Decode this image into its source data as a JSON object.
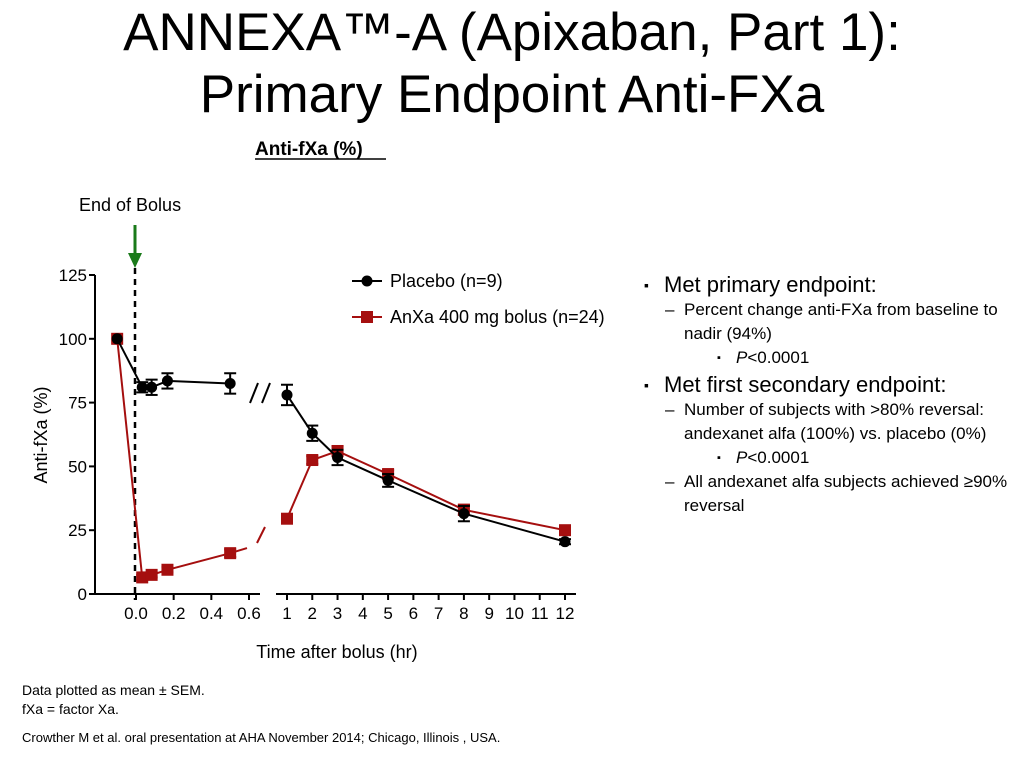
{
  "slide": {
    "title_line1": "ANNEXA™-A (Apixaban, Part 1):",
    "title_line2": "Primary Endpoint Anti-FXa"
  },
  "chart_data": {
    "type": "line",
    "title": "Anti-fXa (%)",
    "annotation": "End of Bolus",
    "xlabel": "Time after bolus (hr)",
    "ylabel": "Anti-fXa (%)",
    "ylim": [
      0,
      125
    ],
    "yticks": [
      0,
      25,
      50,
      75,
      100,
      125
    ],
    "ytick_labels": [
      "0",
      "25",
      "50",
      "75",
      "100",
      "125"
    ],
    "x_segment1": {
      "range": [
        -0.1,
        0.65
      ],
      "ticks": [
        0.0,
        0.2,
        0.4,
        0.6
      ],
      "tick_labels": [
        "0.0",
        "0.2",
        "0.4",
        "0.6"
      ]
    },
    "x_segment2": {
      "range": [
        0.75,
        12.3
      ],
      "ticks": [
        1,
        2,
        3,
        4,
        5,
        6,
        7,
        8,
        9,
        10,
        11,
        12
      ],
      "tick_labels": [
        "1",
        "2",
        "3",
        "4",
        "5",
        "6",
        "7",
        "8",
        "9",
        "10",
        "11",
        "12"
      ]
    },
    "axis_break": true,
    "legend_position": "top-right",
    "series": [
      {
        "name": "Placebo (n=9)",
        "color": "#000000",
        "marker": "circle",
        "points": [
          {
            "x": -0.1,
            "y": 100,
            "err": 0
          },
          {
            "x": 0.033,
            "y": 81,
            "err": 2
          },
          {
            "x": 0.083,
            "y": 81,
            "err": 3
          },
          {
            "x": 0.167,
            "y": 83.5,
            "err": 3
          },
          {
            "x": 0.5,
            "y": 82.5,
            "err": 4
          },
          {
            "x": 1,
            "y": 78,
            "err": 4
          },
          {
            "x": 2,
            "y": 63,
            "err": 3
          },
          {
            "x": 3,
            "y": 53.5,
            "err": 3
          },
          {
            "x": 5,
            "y": 44.5,
            "err": 2.5
          },
          {
            "x": 8,
            "y": 31.5,
            "err": 3
          },
          {
            "x": 12,
            "y": 20.5,
            "err": 1
          }
        ]
      },
      {
        "name": "AnXa 400 mg bolus (n=24)",
        "color": "#a50f0f",
        "marker": "square",
        "points": [
          {
            "x": -0.1,
            "y": 100,
            "err": 0
          },
          {
            "x": 0.033,
            "y": 6.5,
            "err": 1
          },
          {
            "x": 0.083,
            "y": 7.5,
            "err": 1
          },
          {
            "x": 0.167,
            "y": 9.5,
            "err": 1
          },
          {
            "x": 0.5,
            "y": 16,
            "err": 1.5
          },
          {
            "x": 1,
            "y": 29.5,
            "err": 1.5
          },
          {
            "x": 2,
            "y": 52.5,
            "err": 1.5
          },
          {
            "x": 3,
            "y": 56,
            "err": 2
          },
          {
            "x": 5,
            "y": 47,
            "err": 1.5
          },
          {
            "x": 8,
            "y": 33,
            "err": 2
          },
          {
            "x": 12,
            "y": 25,
            "err": 1
          }
        ]
      }
    ]
  },
  "bullets": [
    {
      "level": 1,
      "marker": "▪",
      "text": "Met primary endpoint:"
    },
    {
      "level": 2,
      "marker": "–",
      "text": "Percent change anti-FXa from baseline to nadir (94%)"
    },
    {
      "level": 3,
      "marker": "▪",
      "italic": "P",
      "text": "<0.0001"
    },
    {
      "level": 1,
      "marker": "▪",
      "text": "Met first secondary endpoint:"
    },
    {
      "level": 2,
      "marker": "–",
      "text": "Number of subjects with >80% reversal: andexanet alfa (100%) vs. placebo (0%)"
    },
    {
      "level": 3,
      "marker": "▪",
      "italic": "P",
      "text": "<0.0001"
    },
    {
      "level": 2,
      "marker": "–",
      "text": "All andexanet alfa subjects achieved ≥90% reversal"
    }
  ],
  "footnotes": {
    "line1": "Data plotted as mean ± SEM.",
    "line2": "fXa = factor Xa.",
    "citation": "Crowther M et al. oral presentation at AHA November  2014; Chicago, Illinois , USA."
  },
  "colors": {
    "placebo": "#000000",
    "andexanet": "#a50f0f",
    "bolus_arrow": "#1a7a1a"
  }
}
